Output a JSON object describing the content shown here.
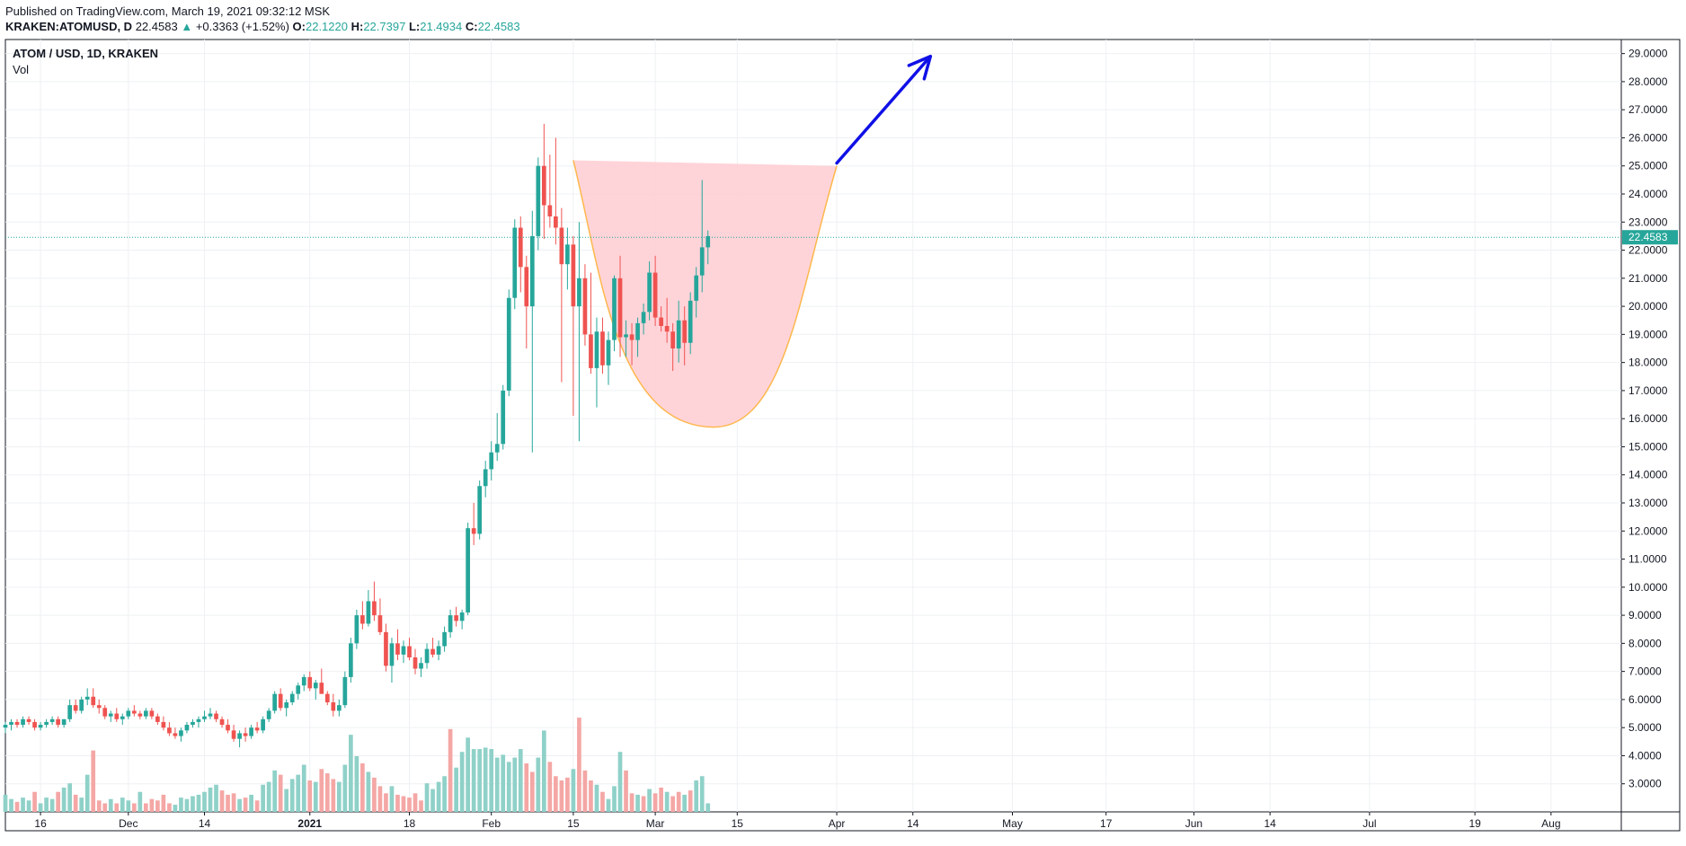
{
  "header": {
    "published": "Published on TradingView.com, March 19, 2021 09:32:12 MSK",
    "symbol": "KRAKEN:ATOMUSD, D",
    "last": "22.4583",
    "change_arrow": "▲",
    "change": "+0.3363 (+1.52%)",
    "o_label": "O:",
    "o_value": "22.1220",
    "h_label": "H:",
    "h_value": "22.7397",
    "l_label": "L:",
    "l_value": "21.4934",
    "c_label": "C:",
    "c_value": "22.4583"
  },
  "legend": {
    "title": "ATOM / USD, 1D, KRAKEN",
    "volume": "Vol"
  },
  "colors": {
    "up": "#26a69a",
    "down": "#ef5350",
    "vol_up": "#8fd1c8",
    "vol_down": "#f4a7a5",
    "cup_fill": "#ffcdd2",
    "cup_stroke": "#ffb74d",
    "arrow": "#1010e6",
    "grid": "#eef0f3"
  },
  "chart_data": {
    "type": "candlestick",
    "y_axis_ticks": [
      "29.0000",
      "28.0000",
      "27.0000",
      "26.0000",
      "25.0000",
      "24.0000",
      "23.0000",
      "22.0000",
      "21.0000",
      "20.0000",
      "19.0000",
      "18.0000",
      "17.0000",
      "16.0000",
      "15.0000",
      "14.0000",
      "13.0000",
      "12.0000",
      "11.0000",
      "10.0000",
      "9.0000",
      "8.0000",
      "7.0000",
      "6.0000",
      "5.0000",
      "4.0000",
      "3.0000"
    ],
    "ylim": [
      2.0,
      29.5
    ],
    "x_axis_ticks": [
      {
        "label": "16",
        "date": "2020-11-16"
      },
      {
        "label": "Dec",
        "date": "2020-12-01"
      },
      {
        "label": "14",
        "date": "2020-12-14"
      },
      {
        "label": "2021",
        "date": "2021-01-01"
      },
      {
        "label": "18",
        "date": "2021-01-18"
      },
      {
        "label": "Feb",
        "date": "2021-02-01"
      },
      {
        "label": "15",
        "date": "2021-02-15"
      },
      {
        "label": "Mar",
        "date": "2021-03-01"
      },
      {
        "label": "15",
        "date": "2021-03-15"
      },
      {
        "label": "Apr",
        "date": "2021-04-01"
      },
      {
        "label": "14",
        "date": "2021-04-14"
      },
      {
        "label": "May",
        "date": "2021-05-01"
      },
      {
        "label": "17",
        "date": "2021-05-17"
      },
      {
        "label": "Jun",
        "date": "2021-06-01"
      },
      {
        "label": "14",
        "date": "2021-06-14"
      },
      {
        "label": "Jul",
        "date": "2021-07-01"
      },
      {
        "label": "19",
        "date": "2021-07-19"
      },
      {
        "label": "Aug",
        "date": "2021-08-01"
      }
    ],
    "xlim": [
      "2020-11-10",
      "2021-08-13"
    ],
    "last_price_label": "22.4583",
    "last_price": 22.4583,
    "candles_start": "2020-11-10",
    "candles": [
      [
        5.0,
        5.2,
        4.8,
        5.1
      ],
      [
        5.1,
        5.3,
        4.9,
        5.2
      ],
      [
        5.2,
        5.3,
        5.0,
        5.1
      ],
      [
        5.1,
        5.4,
        5.0,
        5.3
      ],
      [
        5.3,
        5.4,
        5.1,
        5.2
      ],
      [
        5.2,
        5.3,
        4.9,
        5.0
      ],
      [
        5.0,
        5.2,
        4.9,
        5.1
      ],
      [
        5.1,
        5.3,
        5.0,
        5.2
      ],
      [
        5.2,
        5.4,
        5.1,
        5.3
      ],
      [
        5.3,
        5.4,
        5.0,
        5.1
      ],
      [
        5.1,
        5.3,
        5.0,
        5.3
      ],
      [
        5.3,
        6.0,
        5.2,
        5.8
      ],
      [
        5.8,
        6.0,
        5.5,
        5.6
      ],
      [
        5.6,
        6.1,
        5.5,
        6.0
      ],
      [
        6.0,
        6.4,
        5.8,
        6.1
      ],
      [
        6.1,
        6.4,
        5.7,
        5.8
      ],
      [
        5.8,
        6.0,
        5.5,
        5.7
      ],
      [
        5.7,
        5.8,
        5.3,
        5.4
      ],
      [
        5.4,
        5.6,
        5.2,
        5.5
      ],
      [
        5.5,
        5.7,
        5.2,
        5.3
      ],
      [
        5.3,
        5.5,
        5.1,
        5.4
      ],
      [
        5.4,
        5.7,
        5.3,
        5.6
      ],
      [
        5.6,
        5.8,
        5.4,
        5.5
      ],
      [
        5.5,
        5.6,
        5.3,
        5.4
      ],
      [
        5.4,
        5.7,
        5.3,
        5.6
      ],
      [
        5.6,
        5.7,
        5.3,
        5.4
      ],
      [
        5.4,
        5.5,
        5.1,
        5.2
      ],
      [
        5.2,
        5.4,
        4.9,
        5.0
      ],
      [
        5.0,
        5.2,
        4.7,
        4.8
      ],
      [
        4.8,
        5.0,
        4.6,
        4.7
      ],
      [
        4.7,
        5.0,
        4.5,
        4.9
      ],
      [
        4.9,
        5.2,
        4.8,
        5.1
      ],
      [
        5.1,
        5.3,
        5.0,
        5.2
      ],
      [
        5.2,
        5.4,
        5.0,
        5.3
      ],
      [
        5.3,
        5.6,
        5.2,
        5.4
      ],
      [
        5.4,
        5.7,
        5.3,
        5.5
      ],
      [
        5.5,
        5.6,
        5.2,
        5.3
      ],
      [
        5.3,
        5.4,
        5.0,
        5.1
      ],
      [
        5.1,
        5.3,
        4.8,
        4.9
      ],
      [
        4.9,
        5.1,
        4.5,
        4.6
      ],
      [
        4.6,
        4.9,
        4.3,
        4.8
      ],
      [
        4.8,
        5.0,
        4.5,
        4.7
      ],
      [
        4.7,
        5.1,
        4.6,
        5.0
      ],
      [
        5.0,
        5.2,
        4.8,
        4.9
      ],
      [
        4.9,
        5.4,
        4.8,
        5.3
      ],
      [
        5.3,
        5.7,
        5.2,
        5.6
      ],
      [
        5.6,
        6.3,
        5.5,
        6.2
      ],
      [
        6.2,
        6.4,
        5.6,
        5.7
      ],
      [
        5.7,
        6.0,
        5.4,
        5.9
      ],
      [
        5.9,
        6.3,
        5.8,
        6.2
      ],
      [
        6.2,
        6.6,
        6.0,
        6.5
      ],
      [
        6.5,
        6.9,
        6.3,
        6.8
      ],
      [
        6.8,
        7.0,
        6.3,
        6.4
      ],
      [
        6.4,
        6.7,
        6.0,
        6.6
      ],
      [
        6.6,
        7.1,
        6.4,
        6.2
      ],
      [
        6.2,
        6.3,
        5.8,
        5.9
      ],
      [
        5.9,
        6.2,
        5.4,
        5.6
      ],
      [
        5.6,
        6.0,
        5.4,
        5.8
      ],
      [
        5.8,
        7.0,
        5.7,
        6.8
      ],
      [
        6.8,
        8.2,
        6.6,
        8.0
      ],
      [
        8.0,
        9.2,
        7.8,
        9.0
      ],
      [
        9.0,
        9.5,
        8.5,
        8.7
      ],
      [
        8.7,
        9.9,
        8.6,
        9.5
      ],
      [
        9.5,
        10.2,
        8.8,
        9.0
      ],
      [
        9.0,
        9.6,
        8.3,
        8.4
      ],
      [
        8.4,
        8.7,
        7.0,
        7.2
      ],
      [
        7.2,
        8.2,
        6.6,
        8.0
      ],
      [
        8.0,
        8.5,
        7.4,
        7.6
      ],
      [
        7.6,
        8.1,
        7.3,
        7.9
      ],
      [
        7.9,
        8.2,
        7.4,
        7.5
      ],
      [
        7.5,
        7.8,
        6.9,
        7.1
      ],
      [
        7.1,
        7.5,
        6.8,
        7.3
      ],
      [
        7.3,
        8.0,
        7.1,
        7.8
      ],
      [
        7.8,
        8.2,
        7.5,
        7.6
      ],
      [
        7.6,
        8.1,
        7.4,
        7.9
      ],
      [
        7.9,
        8.6,
        7.7,
        8.4
      ],
      [
        8.4,
        9.2,
        8.2,
        9.0
      ],
      [
        9.0,
        9.3,
        8.6,
        8.8
      ],
      [
        8.8,
        9.2,
        8.5,
        9.1
      ],
      [
        9.1,
        12.3,
        9.0,
        12.1
      ],
      [
        12.1,
        13.0,
        11.5,
        11.9
      ],
      [
        11.9,
        13.8,
        11.7,
        13.6
      ],
      [
        13.6,
        14.5,
        13.2,
        14.2
      ],
      [
        14.2,
        15.2,
        13.8,
        14.8
      ],
      [
        14.8,
        16.2,
        14.5,
        15.1
      ],
      [
        15.1,
        17.2,
        14.9,
        17.0
      ],
      [
        17.0,
        20.6,
        16.8,
        20.3
      ],
      [
        20.3,
        23.1,
        19.9,
        22.8
      ],
      [
        22.8,
        23.2,
        20.5,
        21.4
      ],
      [
        21.4,
        21.8,
        18.5,
        20.0
      ],
      [
        20.0,
        23.4,
        14.8,
        22.5
      ],
      [
        22.5,
        25.3,
        22.0,
        25.0
      ],
      [
        25.0,
        26.5,
        22.4,
        23.6
      ],
      [
        23.6,
        25.4,
        22.8,
        23.2
      ],
      [
        23.2,
        26.0,
        22.2,
        22.8
      ],
      [
        22.8,
        23.5,
        17.3,
        21.5
      ],
      [
        21.5,
        22.8,
        20.6,
        22.2
      ],
      [
        22.2,
        22.5,
        16.1,
        20.0
      ],
      [
        20.0,
        23.0,
        15.2,
        21.0
      ],
      [
        21.0,
        21.5,
        18.6,
        19.0
      ],
      [
        19.0,
        21.2,
        17.6,
        17.8
      ],
      [
        17.8,
        19.6,
        16.4,
        19.1
      ],
      [
        19.1,
        19.6,
        17.6,
        17.9
      ],
      [
        17.9,
        19.1,
        17.2,
        18.8
      ],
      [
        18.8,
        21.1,
        18.4,
        21.0
      ],
      [
        21.0,
        21.8,
        18.2,
        18.9
      ],
      [
        18.9,
        19.5,
        18.2,
        19.0
      ],
      [
        19.0,
        19.4,
        17.9,
        18.8
      ],
      [
        18.8,
        19.6,
        18.2,
        19.4
      ],
      [
        19.4,
        20.1,
        19.0,
        19.8
      ],
      [
        19.8,
        21.6,
        19.5,
        21.2
      ],
      [
        21.2,
        21.8,
        19.3,
        19.6
      ],
      [
        19.6,
        20.0,
        19.1,
        19.3
      ],
      [
        19.3,
        20.3,
        18.7,
        19.1
      ],
      [
        19.1,
        19.4,
        17.7,
        18.5
      ],
      [
        18.5,
        20.2,
        18.0,
        19.5
      ],
      [
        19.5,
        20.0,
        17.9,
        18.7
      ],
      [
        18.7,
        20.5,
        18.3,
        20.2
      ],
      [
        20.2,
        21.4,
        19.6,
        21.1
      ],
      [
        21.1,
        24.5,
        20.5,
        22.1
      ],
      [
        22.1,
        22.7,
        21.5,
        22.5
      ]
    ],
    "volume_ylim": [
      0,
      100
    ],
    "volumes": [
      [
        12,
        1
      ],
      [
        9,
        1
      ],
      [
        7,
        0
      ],
      [
        10,
        1
      ],
      [
        8,
        1
      ],
      [
        14,
        0
      ],
      [
        6,
        1
      ],
      [
        10,
        1
      ],
      [
        9,
        1
      ],
      [
        14,
        0
      ],
      [
        17,
        1
      ],
      [
        20,
        1
      ],
      [
        12,
        0
      ],
      [
        10,
        1
      ],
      [
        26,
        1
      ],
      [
        43,
        0
      ],
      [
        8,
        0
      ],
      [
        6,
        0
      ],
      [
        9,
        1
      ],
      [
        6,
        0
      ],
      [
        10,
        1
      ],
      [
        8,
        1
      ],
      [
        6,
        0
      ],
      [
        14,
        1
      ],
      [
        6,
        0
      ],
      [
        9,
        0
      ],
      [
        8,
        0
      ],
      [
        12,
        0
      ],
      [
        6,
        0
      ],
      [
        5,
        1
      ],
      [
        10,
        1
      ],
      [
        9,
        1
      ],
      [
        11,
        1
      ],
      [
        12,
        1
      ],
      [
        14,
        1
      ],
      [
        17,
        1
      ],
      [
        19,
        1
      ],
      [
        15,
        0
      ],
      [
        12,
        0
      ],
      [
        13,
        0
      ],
      [
        9,
        1
      ],
      [
        10,
        0
      ],
      [
        12,
        1
      ],
      [
        8,
        0
      ],
      [
        19,
        1
      ],
      [
        21,
        1
      ],
      [
        29,
        1
      ],
      [
        26,
        0
      ],
      [
        16,
        1
      ],
      [
        23,
        1
      ],
      [
        26,
        1
      ],
      [
        33,
        1
      ],
      [
        22,
        0
      ],
      [
        21,
        1
      ],
      [
        30,
        0
      ],
      [
        27,
        0
      ],
      [
        23,
        0
      ],
      [
        21,
        1
      ],
      [
        33,
        1
      ],
      [
        54,
        1
      ],
      [
        39,
        1
      ],
      [
        34,
        0
      ],
      [
        28,
        1
      ],
      [
        24,
        0
      ],
      [
        18,
        0
      ],
      [
        13,
        0
      ],
      [
        18,
        1
      ],
      [
        12,
        0
      ],
      [
        11,
        0
      ],
      [
        10,
        0
      ],
      [
        13,
        0
      ],
      [
        8,
        0
      ],
      [
        20,
        1
      ],
      [
        16,
        1
      ],
      [
        21,
        1
      ],
      [
        25,
        1
      ],
      [
        58,
        0
      ],
      [
        31,
        1
      ],
      [
        42,
        1
      ],
      [
        52,
        1
      ],
      [
        44,
        1
      ],
      [
        44,
        1
      ],
      [
        45,
        1
      ],
      [
        44,
        1
      ],
      [
        38,
        1
      ],
      [
        40,
        1
      ],
      [
        35,
        1
      ],
      [
        38,
        1
      ],
      [
        44,
        1
      ],
      [
        34,
        0
      ],
      [
        28,
        0
      ],
      [
        38,
        1
      ],
      [
        57,
        1
      ],
      [
        35,
        0
      ],
      [
        25,
        0
      ],
      [
        22,
        0
      ],
      [
        24,
        0
      ],
      [
        30,
        1
      ],
      [
        66,
        0
      ],
      [
        29,
        0
      ],
      [
        22,
        0
      ],
      [
        19,
        1
      ],
      [
        14,
        0
      ],
      [
        9,
        1
      ],
      [
        18,
        1
      ],
      [
        42,
        1
      ],
      [
        29,
        0
      ],
      [
        13,
        0
      ],
      [
        12,
        1
      ],
      [
        11,
        0
      ],
      [
        16,
        1
      ],
      [
        13,
        0
      ],
      [
        17,
        0
      ],
      [
        14,
        1
      ],
      [
        11,
        0
      ],
      [
        14,
        0
      ],
      [
        12,
        1
      ],
      [
        15,
        0
      ],
      [
        22,
        1
      ],
      [
        25,
        1
      ],
      [
        6,
        1
      ]
    ],
    "annotations": [
      {
        "type": "cup_shape",
        "rim_start": {
          "date": "2021-02-15",
          "price": 25.2
        },
        "rim_end": {
          "date": "2021-04-01",
          "price": 25.0
        },
        "bottom": {
          "date": "2021-03-11",
          "price": 15.7
        }
      },
      {
        "type": "arrow",
        "from": {
          "date": "2021-04-01",
          "price": 25.1
        },
        "to": {
          "date": "2021-04-17",
          "price": 28.9
        }
      }
    ]
  }
}
